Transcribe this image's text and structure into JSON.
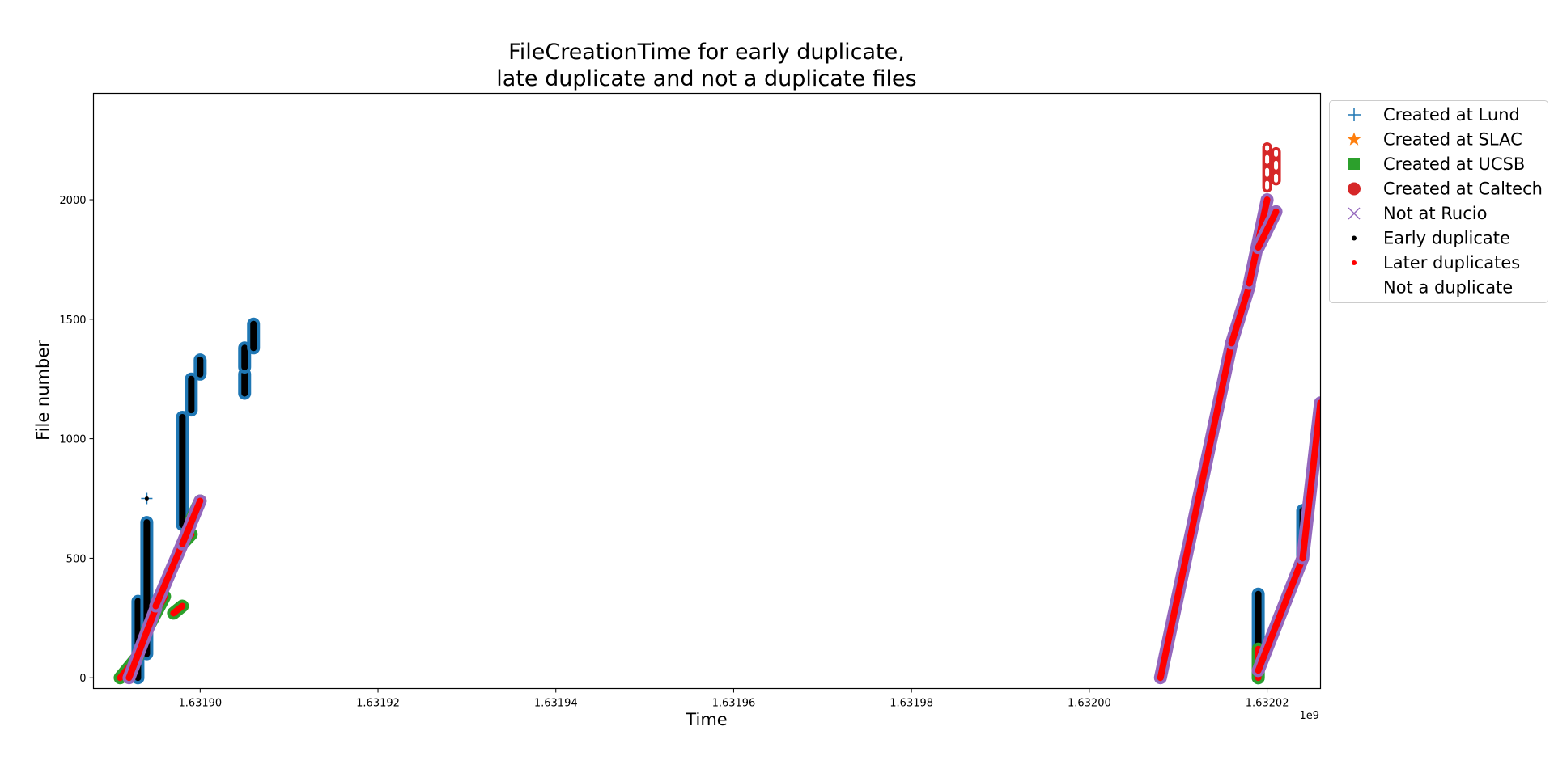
{
  "chart_data": {
    "type": "scatter",
    "title_lines": [
      "FileCreationTime for early duplicate,",
      "late duplicate and not a duplicate files"
    ],
    "xlabel": "Time",
    "ylabel": "File number",
    "x_offset_label": "1e9",
    "xlim": [
      1.631888,
      1.632026
    ],
    "ylim": [
      -45,
      2445
    ],
    "x_ticks": [
      1.6319,
      1.63192,
      1.63194,
      1.63196,
      1.63198,
      1.632,
      1.63202
    ],
    "x_tick_labels": [
      "1.63190",
      "1.63192",
      "1.63194",
      "1.63196",
      "1.63198",
      "1.63200",
      "1.63202"
    ],
    "y_ticks": [
      0,
      500,
      1000,
      1500,
      2000
    ],
    "y_tick_labels": [
      "0",
      "500",
      "1000",
      "1500",
      "2000"
    ],
    "grid": false,
    "legend_position": "outside-right-top",
    "legend": [
      {
        "name": "Created at Lund",
        "marker": "plus",
        "color": "#1f77b4"
      },
      {
        "name": "Created at SLAC",
        "marker": "star",
        "color": "#ff7f0e"
      },
      {
        "name": "Created at UCSB",
        "marker": "square",
        "color": "#2ca02c"
      },
      {
        "name": "Created at Caltech",
        "marker": "circle",
        "color": "#d62728"
      },
      {
        "name": "Not at Rucio",
        "marker": "x",
        "color": "#9467bd"
      },
      {
        "name": "Early duplicate",
        "marker": "dot",
        "color": "#000000"
      },
      {
        "name": "Later duplicates",
        "marker": "dot",
        "color": "#ff0000"
      },
      {
        "name": "Not a duplicate",
        "marker": "dot",
        "color": "#ffffff"
      }
    ],
    "series": [
      {
        "name": "Created at Lund",
        "marker": "plus",
        "color": "#1f77b4",
        "inner_color": "#000000",
        "segments": [
          [
            [
              1.631893,
              0
            ],
            [
              1.631893,
              320
            ]
          ],
          [
            [
              1.631894,
              100
            ],
            [
              1.631894,
              650
            ]
          ],
          [
            [
              1.631898,
              640
            ],
            [
              1.631898,
              1090
            ]
          ],
          [
            [
              1.631899,
              1120
            ],
            [
              1.631899,
              1250
            ]
          ],
          [
            [
              1.6319,
              1270
            ],
            [
              1.6319,
              1330
            ]
          ],
          [
            [
              1.631905,
              1190
            ],
            [
              1.631905,
              1270
            ]
          ],
          [
            [
              1.631905,
              1300
            ],
            [
              1.631905,
              1380
            ]
          ],
          [
            [
              1.631906,
              1380
            ],
            [
              1.631906,
              1480
            ]
          ],
          [
            [
              1.632019,
              0
            ],
            [
              1.632019,
              350
            ]
          ],
          [
            [
              1.632024,
              500
            ],
            [
              1.632024,
              700
            ]
          ]
        ],
        "points": [
          [
            1.631894,
            750
          ]
        ]
      },
      {
        "name": "Created at UCSB",
        "marker": "square",
        "color": "#2ca02c",
        "inner_color": "#ff0000",
        "segments": [
          [
            [
              1.631891,
              0
            ],
            [
              1.631893,
              90
            ]
          ],
          [
            [
              1.631894,
              200
            ],
            [
              1.631896,
              340
            ]
          ],
          [
            [
              1.631897,
              270
            ],
            [
              1.631898,
              300
            ]
          ],
          [
            [
              1.631898,
              560
            ],
            [
              1.631899,
              600
            ]
          ],
          [
            [
              1.631899,
              660
            ],
            [
              1.6319,
              740
            ]
          ],
          [
            [
              1.632019,
              0
            ],
            [
              1.632019,
              120
            ]
          ]
        ]
      },
      {
        "name": "Not at Rucio",
        "marker": "x",
        "color": "#9467bd",
        "inner_color": "#ff0000",
        "segments": [
          [
            [
              1.631892,
              0
            ],
            [
              1.631895,
              290
            ]
          ],
          [
            [
              1.631895,
              300
            ],
            [
              1.631898,
              560
            ]
          ],
          [
            [
              1.631898,
              560
            ],
            [
              1.6319,
              740
            ]
          ],
          [
            [
              1.632008,
              0
            ],
            [
              1.632016,
              1400
            ]
          ],
          [
            [
              1.632016,
              1400
            ],
            [
              1.632018,
              1640
            ]
          ],
          [
            [
              1.632018,
              1650
            ],
            [
              1.63202,
              2000
            ]
          ],
          [
            [
              1.632019,
              1800
            ],
            [
              1.632021,
              1950
            ]
          ],
          [
            [
              1.632019,
              30
            ],
            [
              1.632024,
              500
            ]
          ],
          [
            [
              1.632024,
              500
            ],
            [
              1.632026,
              1150
            ]
          ]
        ]
      },
      {
        "name": "Created at Caltech",
        "marker": "circle",
        "color": "#d62728",
        "inner_color": "#ffffff",
        "segments": [
          [
            [
              1.63202,
              2050
            ],
            [
              1.63202,
              2220
            ]
          ],
          [
            [
              1.632021,
              2080
            ],
            [
              1.632021,
              2200
            ]
          ]
        ]
      }
    ]
  }
}
